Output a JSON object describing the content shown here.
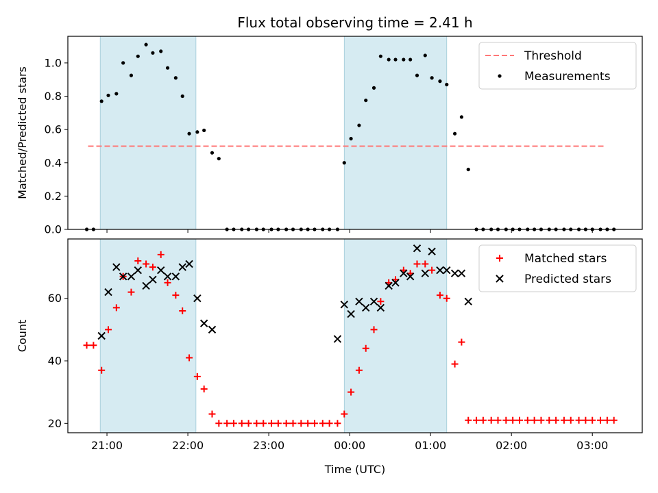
{
  "chart_data": [
    {
      "type": "scatter",
      "title": "Flux total observing time = 2.41 h",
      "ylabel": "Matched/Predicted stars",
      "xlabel": "",
      "xlim": [
        "20:31",
        "03:37"
      ],
      "ylim": [
        0,
        1.16
      ],
      "yticks": [
        0.0,
        0.2,
        0.4,
        0.6,
        0.8,
        1.0
      ],
      "ytick_labels": [
        "0.0",
        "0.2",
        "0.4",
        "0.6",
        "0.8",
        "1.0"
      ],
      "xtick_labels": [],
      "legend_position": "top-right",
      "grid": false,
      "shaded_intervals": [
        {
          "start": "20:55",
          "end": "22:06",
          "color": "#add8e6"
        },
        {
          "start": "23:56",
          "end": "01:12",
          "color": "#add8e6"
        }
      ],
      "threshold": {
        "name": "Threshold",
        "value": 0.5,
        "x_start": "20:46",
        "x_end": "03:10",
        "color": "#ff7777",
        "style": "dashed"
      },
      "series": [
        {
          "name": "Measurements",
          "marker": "dot",
          "color": "#000000",
          "x": [
            "20:45",
            "20:50",
            "20:56",
            "21:01",
            "21:07",
            "21:12",
            "21:18",
            "21:23",
            "21:29",
            "21:34",
            "21:40",
            "21:45",
            "21:51",
            "21:56",
            "22:01",
            "22:07",
            "22:12",
            "22:18",
            "22:23",
            "22:29",
            "22:34",
            "22:40",
            "22:45",
            "22:51",
            "22:56",
            "23:02",
            "23:07",
            "23:13",
            "23:18",
            "23:24",
            "23:29",
            "23:34",
            "23:40",
            "23:45",
            "23:51",
            "23:56",
            "24:01",
            "24:07",
            "24:12",
            "24:18",
            "24:23",
            "24:29",
            "24:34",
            "24:40",
            "24:45",
            "24:50",
            "24:56",
            "25:01",
            "25:07",
            "25:12",
            "25:18",
            "25:23",
            "25:28",
            "25:34",
            "25:39",
            "25:45",
            "25:50",
            "25:56",
            "26:01",
            "26:06",
            "26:12",
            "26:17",
            "26:22",
            "26:28",
            "26:33",
            "26:39",
            "26:44",
            "26:50",
            "26:55",
            "27:00",
            "27:06",
            "27:11",
            "27:16"
          ],
          "y": [
            0,
            0,
            0.77,
            0.805,
            0.815,
            1.0,
            0.925,
            1.04,
            1.11,
            1.06,
            1.07,
            0.97,
            0.91,
            0.8,
            0.575,
            0.585,
            0.595,
            0.46,
            0.425,
            0,
            0,
            0,
            0,
            0,
            0,
            0,
            0,
            0,
            0,
            0,
            0,
            0,
            0,
            0,
            0,
            0.4,
            0.545,
            0.625,
            0.775,
            0.85,
            1.04,
            1.02,
            1.02,
            1.02,
            1.02,
            0.925,
            1.045,
            0.91,
            0.89,
            0.87,
            0.575,
            0.675,
            0.36,
            0,
            0,
            0,
            0,
            0,
            0,
            0,
            0,
            0,
            0,
            0,
            0,
            0,
            0,
            0,
            0,
            0,
            0,
            0,
            0
          ]
        }
      ]
    },
    {
      "type": "scatter",
      "title": "",
      "ylabel": "Count",
      "xlabel": "Time (UTC)",
      "xlim": [
        "20:31",
        "03:37"
      ],
      "ylim": [
        17,
        79
      ],
      "yticks": [
        20,
        40,
        60
      ],
      "ytick_labels": [
        "20",
        "40",
        "60"
      ],
      "xtick_values": [
        "21:00",
        "22:00",
        "23:00",
        "24:00",
        "25:00",
        "26:00",
        "27:00"
      ],
      "xtick_labels": [
        "21:00",
        "22:00",
        "23:00",
        "00:00",
        "01:00",
        "02:00",
        "03:00"
      ],
      "legend_position": "top-right",
      "grid": false,
      "shaded_intervals": [
        {
          "start": "20:55",
          "end": "22:06",
          "color": "#add8e6"
        },
        {
          "start": "23:56",
          "end": "01:12",
          "color": "#add8e6"
        }
      ],
      "series": [
        {
          "name": "Matched stars",
          "marker": "plus",
          "color": "#ff0000",
          "x": [
            "20:45",
            "20:50",
            "20:56",
            "21:01",
            "21:07",
            "21:12",
            "21:18",
            "21:23",
            "21:29",
            "21:34",
            "21:40",
            "21:45",
            "21:51",
            "21:56",
            "22:01",
            "22:07",
            "22:12",
            "22:18",
            "22:23",
            "22:29",
            "22:34",
            "22:40",
            "22:45",
            "22:51",
            "22:56",
            "23:02",
            "23:07",
            "23:13",
            "23:18",
            "23:24",
            "23:29",
            "23:34",
            "23:40",
            "23:45",
            "23:51",
            "23:56",
            "24:01",
            "24:07",
            "24:12",
            "24:18",
            "24:23",
            "24:29",
            "24:34",
            "24:40",
            "24:45",
            "24:50",
            "24:56",
            "25:01",
            "25:07",
            "25:12",
            "25:18",
            "25:23",
            "25:28",
            "25:34",
            "25:39",
            "25:45",
            "25:50",
            "25:56",
            "26:01",
            "26:06",
            "26:12",
            "26:17",
            "26:22",
            "26:28",
            "26:33",
            "26:39",
            "26:44",
            "26:50",
            "26:55",
            "27:00",
            "27:06",
            "27:11",
            "27:16"
          ],
          "y": [
            45,
            45,
            37,
            50,
            57,
            67,
            62,
            72,
            71,
            70,
            74,
            65,
            61,
            56,
            41,
            35,
            31,
            23,
            20,
            20,
            20,
            20,
            20,
            20,
            20,
            20,
            20,
            20,
            20,
            20,
            20,
            20,
            20,
            20,
            20,
            23,
            30,
            37,
            44,
            50,
            59,
            65,
            66,
            69,
            68,
            71,
            71,
            69,
            61,
            60,
            39,
            46,
            21,
            21,
            21,
            21,
            21,
            21,
            21,
            21,
            21,
            21,
            21,
            21,
            21,
            21,
            21,
            21,
            21,
            21,
            21,
            21,
            21
          ]
        },
        {
          "name": "Predicted stars",
          "marker": "x",
          "color": "#000000",
          "x": [
            "20:56",
            "21:01",
            "21:07",
            "21:12",
            "21:18",
            "21:23",
            "21:29",
            "21:34",
            "21:40",
            "21:45",
            "21:51",
            "21:56",
            "22:01",
            "22:07",
            "22:12",
            "22:18",
            "23:51",
            "23:56",
            "24:01",
            "24:07",
            "24:12",
            "24:18",
            "24:23",
            "24:29",
            "24:34",
            "24:40",
            "24:45",
            "24:50",
            "24:56",
            "25:01",
            "25:07",
            "25:12",
            "25:18",
            "25:23",
            "25:28"
          ],
          "y": [
            48,
            62,
            70,
            67,
            67,
            69,
            64,
            66,
            69,
            67,
            67,
            70,
            71,
            60,
            52,
            50,
            47,
            58,
            55,
            59,
            57,
            59,
            57,
            64,
            65,
            68,
            67,
            76,
            68,
            75,
            69,
            69,
            68,
            68,
            59
          ]
        }
      ]
    }
  ]
}
